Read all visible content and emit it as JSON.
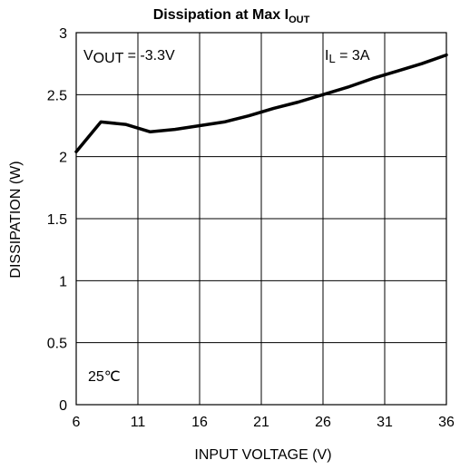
{
  "chart_data": {
    "type": "line",
    "title": {
      "main": "Dissipation at Max I",
      "sub": "OUT"
    },
    "xlabel": "INPUT VOLTAGE  (V)",
    "ylabel": "DISSIPATION (W)",
    "xlim": [
      6,
      36
    ],
    "ylim": [
      0,
      3
    ],
    "xticks": [
      6,
      11,
      16,
      21,
      26,
      31,
      36
    ],
    "yticks": [
      0,
      0.5,
      1,
      1.5,
      2,
      2.5,
      3
    ],
    "xtick_labels": [
      "6",
      "11",
      "16",
      "21",
      "26",
      "31",
      "36"
    ],
    "ytick_labels": [
      "0",
      "0.5",
      "1",
      "1.5",
      "2",
      "2.5",
      "3"
    ],
    "grid": true,
    "series": [
      {
        "x": [
          6,
          8,
          10,
          12,
          14,
          16,
          18,
          20,
          22,
          24,
          26,
          28,
          30,
          32,
          34,
          36
        ],
        "y": [
          2.04,
          2.28,
          2.26,
          2.2,
          2.22,
          2.25,
          2.28,
          2.33,
          2.39,
          2.44,
          2.5,
          2.56,
          2.63,
          2.69,
          2.75,
          2.82
        ]
      }
    ],
    "annotations": {
      "vout": {
        "prefix": "V",
        "sub": "OUT",
        "suffix": " = -3.3V"
      },
      "il": {
        "prefix": "I",
        "sub": "L",
        "suffix": " = 3A"
      },
      "temp": "25℃"
    },
    "colors": {
      "line": "#000000",
      "grid": "#000000",
      "background": "#ffffff"
    }
  }
}
